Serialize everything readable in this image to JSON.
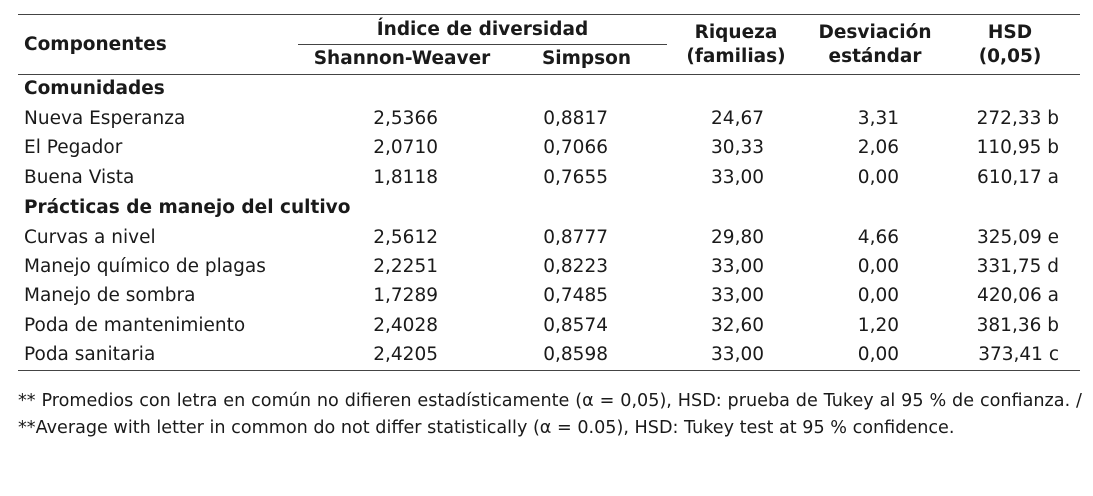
{
  "header": {
    "componentes": "Componentes",
    "indice": "Índice de diversidad",
    "shannon": "Shannon-Weaver",
    "simpson": "Simpson",
    "riqueza": "Riqueza",
    "riqueza_sub": "(familias)",
    "desviacion": "Desviación",
    "desviacion_sub": "estándar",
    "hsd": "HSD",
    "hsd_sub": "(0,05)"
  },
  "sections": [
    {
      "title": "Comunidades",
      "rows": [
        {
          "name": "Nueva Esperanza",
          "shannon": "2,5366",
          "simpson": "0,8817",
          "riqueza": "24,67",
          "desv": "3,31",
          "hsd": "272,33 b"
        },
        {
          "name": "El Pegador",
          "shannon": "2,0710",
          "simpson": "0,7066",
          "riqueza": "30,33",
          "desv": "2,06",
          "hsd": "110,95 b"
        },
        {
          "name": "Buena Vista",
          "shannon": "1,8118",
          "simpson": "0,7655",
          "riqueza": "33,00",
          "desv": "0,00",
          "hsd": "610,17 a"
        }
      ]
    },
    {
      "title": "Prácticas de manejo del cultivo",
      "rows": [
        {
          "name": "Curvas a nivel",
          "shannon": "2,5612",
          "simpson": "0,8777",
          "riqueza": "29,80",
          "desv": "4,66",
          "hsd": "325,09 e"
        },
        {
          "name": "Manejo químico de plagas",
          "shannon": "2,2251",
          "simpson": "0,8223",
          "riqueza": "33,00",
          "desv": "0,00",
          "hsd": "331,75 d"
        },
        {
          "name": "Manejo de sombra",
          "shannon": "1,7289",
          "simpson": "0,7485",
          "riqueza": "33,00",
          "desv": "0,00",
          "hsd": "420,06 a"
        },
        {
          "name": "Poda de mantenimiento",
          "shannon": "2,4028",
          "simpson": "0,8574",
          "riqueza": "32,60",
          "desv": "1,20",
          "hsd": "381,36 b"
        },
        {
          "name": "Poda sanitaria",
          "shannon": "2,4205",
          "simpson": "0,8598",
          "riqueza": "33,00",
          "desv": "0,00",
          "hsd": "373,41 c"
        }
      ]
    }
  ],
  "footnote": "** Promedios con letra en común no difieren estadísticamente (α = 0,05), HSD: prueba de Tukey al 95 % de confianza. / **Average with letter in common do not differ statistically (α = 0.05), HSD: Tukey test at 95 % confidence."
}
